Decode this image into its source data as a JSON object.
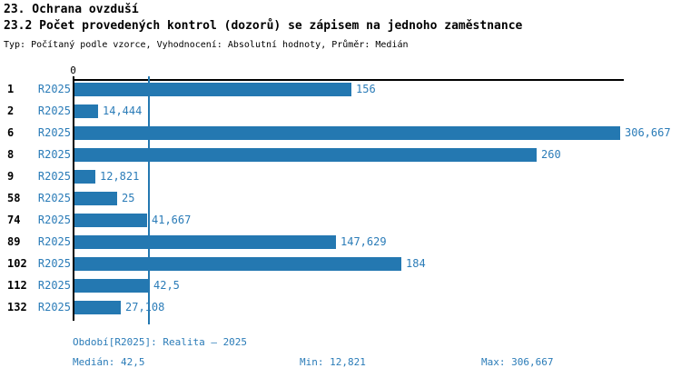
{
  "header": {
    "title1": "23. Ochrana ovzduší",
    "title2": "23.2 Počet provedených kontrol (dozorů) se zápisem na jednoho zaměstnance",
    "subtitle": "Typ: Počítaný podle vzorce, Vyhodnocení: Absolutní hodnoty, Průměr: Medián"
  },
  "chart_data": {
    "type": "bar",
    "orientation": "horizontal",
    "title": "23.2 Počet provedených kontrol (dozorů) se zápisem na jednoho zaměstnance",
    "series_label": "R2025",
    "categories": [
      "1",
      "2",
      "6",
      "8",
      "9",
      "58",
      "74",
      "89",
      "102",
      "112",
      "132"
    ],
    "values": [
      156,
      14.444,
      306.667,
      260,
      12.821,
      25,
      41.667,
      147.629,
      184,
      42.5,
      27.108
    ],
    "value_labels": [
      "156",
      "14,444",
      "306,667",
      "260",
      "12,821",
      "25",
      "41,667",
      "147,629",
      "184",
      "42,5",
      "27,108"
    ],
    "xlim": [
      0,
      341
    ],
    "x_axis_zero_label": "0",
    "median_value": 42.5,
    "grid": "single vertical median gridline",
    "legend_position": "bottom",
    "bar_color": "#2478b1"
  },
  "footer": {
    "period": "Období[R2025]: Realita – 2025",
    "median": "Medián: 42,5",
    "min": "Min: 12,821",
    "max": "Max: 306,667"
  },
  "colors": {
    "bar": "#2478b1",
    "text_blue": "#2b7cb8",
    "text_black": "#000000",
    "axis_black": "#000000",
    "background": "#ffffff"
  }
}
